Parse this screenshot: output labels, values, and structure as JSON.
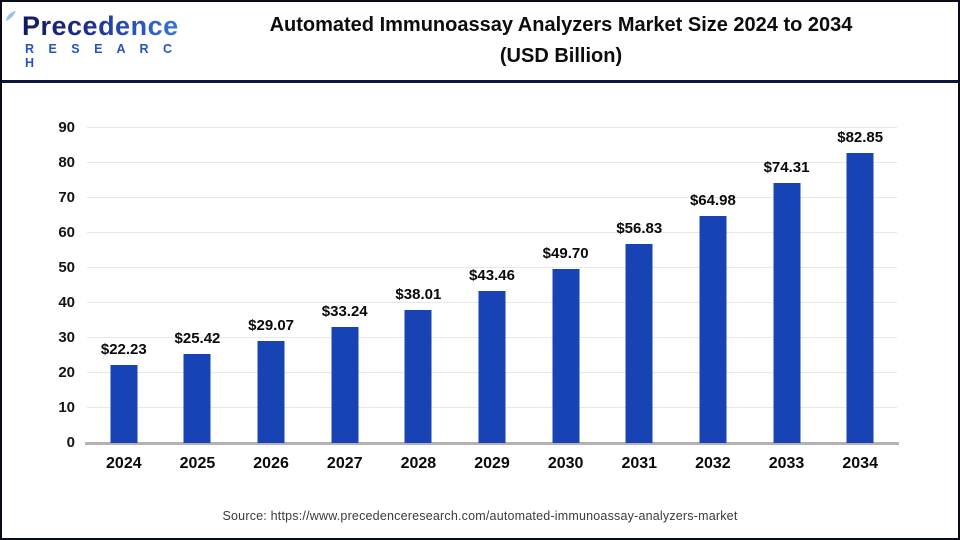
{
  "logo": {
    "line1": "Precedence",
    "line2": "R E S E A R C H"
  },
  "header": {
    "title_line1": "Automated Immunoassay Analyzers Market Size 2024 to 2034",
    "title_line2": "(USD Billion)"
  },
  "footer": {
    "source": "Source: https://www.precedenceresearch.com/automated-immunoassay-analyzers-market"
  },
  "colors": {
    "bar": "#1743b5",
    "grid": "#e8e8e8",
    "axis": "#b2b2b2",
    "divider": "#0e1440",
    "logo_blue": "#2553c6"
  },
  "chart_data": {
    "type": "bar",
    "title": "Automated Immunoassay Analyzers Market Size 2024 to 2034 (USD Billion)",
    "xlabel": "",
    "ylabel": "",
    "unit": "USD Billion",
    "categories": [
      "2024",
      "2025",
      "2026",
      "2027",
      "2028",
      "2029",
      "2030",
      "2031",
      "2032",
      "2033",
      "2034"
    ],
    "values": [
      22.23,
      25.42,
      29.07,
      33.24,
      38.01,
      43.46,
      49.7,
      56.83,
      64.98,
      74.31,
      82.85
    ],
    "value_labels": [
      "$22.23",
      "$25.42",
      "$29.07",
      "$33.24",
      "$38.01",
      "$43.46",
      "$49.70",
      "$56.83",
      "$64.98",
      "$74.31",
      "$82.85"
    ],
    "ylim": [
      0,
      90
    ],
    "ytick_step": 10,
    "yticks": [
      0,
      10,
      20,
      30,
      40,
      50,
      60,
      70,
      80,
      90
    ],
    "grid": true,
    "legend_position": "none",
    "bar_color": "#1743b5"
  }
}
